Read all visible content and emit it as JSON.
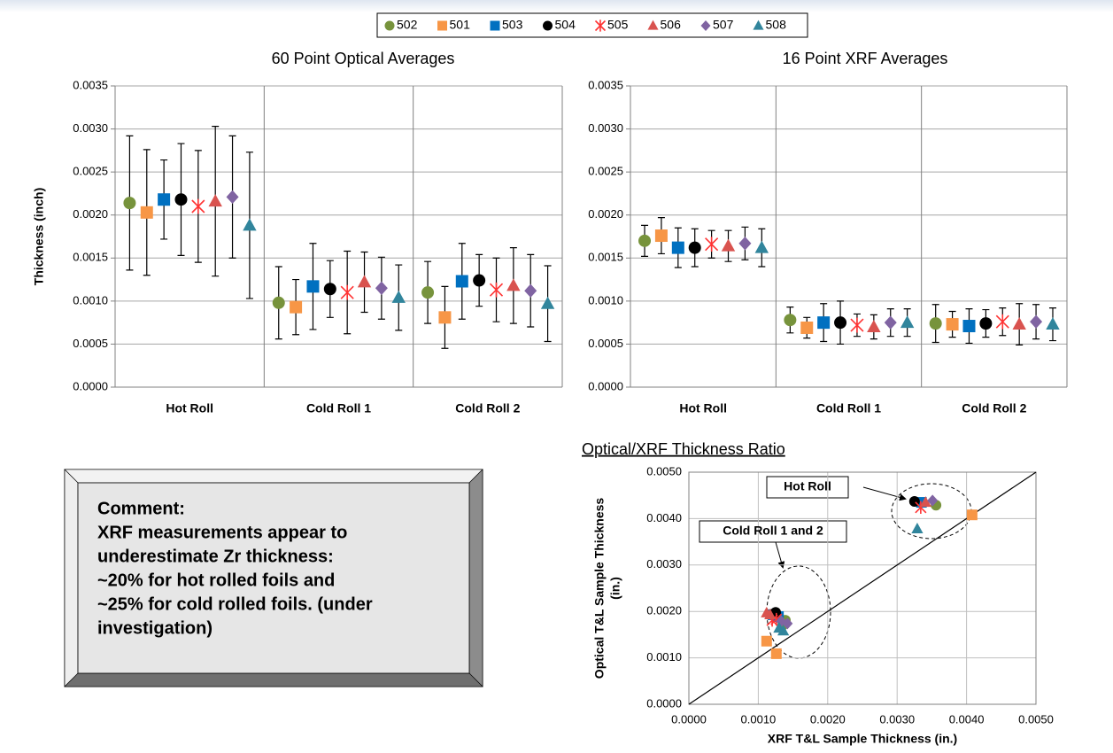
{
  "chart_data": [
    {
      "type": "errorbar",
      "title": "60 Point Optical Averages",
      "y_label": "Thickness (inch)",
      "categories": [
        "Hot Roll",
        "Cold Roll 1",
        "Cold Roll 2"
      ],
      "ylim": [
        0,
        0.0035
      ],
      "yticks": [
        {
          "value": 0,
          "label": "0.0000"
        },
        {
          "value": 0.0005,
          "label": "0.0005"
        },
        {
          "value": 0.001,
          "label": "0.0010"
        },
        {
          "value": 0.0015,
          "label": "0.0015"
        },
        {
          "value": 0.002,
          "label": "0.0020"
        },
        {
          "value": 0.0025,
          "label": "0.0025"
        },
        {
          "value": 0.003,
          "label": "0.0030"
        },
        {
          "value": 0.0035,
          "label": "0.0035"
        }
      ],
      "grid": true,
      "series": [
        {
          "name": "502",
          "color": "#77933c",
          "marker": "circle",
          "values": [
            0.00214,
            0.00098,
            0.0011
          ],
          "errors": [
            0.00078,
            0.00042,
            0.00036
          ]
        },
        {
          "name": "501",
          "color": "#f79646",
          "marker": "square",
          "values": [
            0.00203,
            0.00093,
            0.00081
          ],
          "errors": [
            0.00073,
            0.00032,
            0.00036
          ]
        },
        {
          "name": "503",
          "color": "#0070c0",
          "marker": "square",
          "values": [
            0.00218,
            0.00117,
            0.00123
          ],
          "errors": [
            0.00046,
            0.0005,
            0.00044
          ]
        },
        {
          "name": "504",
          "color": "#000000",
          "marker": "circle",
          "values": [
            0.00218,
            0.00114,
            0.00124
          ],
          "errors": [
            0.00065,
            0.00033,
            0.0003
          ]
        },
        {
          "name": "505",
          "color": "#ff3333",
          "marker": "asterisk",
          "values": [
            0.0021,
            0.0011,
            0.00113
          ],
          "errors": [
            0.00065,
            0.00048,
            0.00037
          ]
        },
        {
          "name": "506",
          "color": "#d9534f",
          "marker": "triangle",
          "values": [
            0.00216,
            0.00122,
            0.00118
          ],
          "errors": [
            0.00087,
            0.00035,
            0.00044
          ]
        },
        {
          "name": "507",
          "color": "#8064a2",
          "marker": "diamond",
          "values": [
            0.00221,
            0.00115,
            0.00112
          ],
          "errors": [
            0.00071,
            0.00036,
            0.00042
          ]
        },
        {
          "name": "508",
          "color": "#31859c",
          "marker": "triangle",
          "values": [
            0.00188,
            0.00104,
            0.00097
          ],
          "errors": [
            0.00085,
            0.00038,
            0.00044
          ]
        }
      ]
    },
    {
      "type": "errorbar",
      "title": "16 Point XRF Averages",
      "categories": [
        "Hot Roll",
        "Cold Roll 1",
        "Cold Roll 2"
      ],
      "ylim": [
        0,
        0.0035
      ],
      "yticks": [
        {
          "value": 0,
          "label": "0.0000"
        },
        {
          "value": 0.0005,
          "label": "0.0005"
        },
        {
          "value": 0.001,
          "label": "0.0010"
        },
        {
          "value": 0.0015,
          "label": "0.0015"
        },
        {
          "value": 0.002,
          "label": "0.0020"
        },
        {
          "value": 0.0025,
          "label": "0.0025"
        },
        {
          "value": 0.003,
          "label": "0.0030"
        },
        {
          "value": 0.0035,
          "label": "0.0035"
        }
      ],
      "grid": true,
      "series": [
        {
          "name": "502",
          "color": "#77933c",
          "marker": "circle",
          "values": [
            0.0017,
            0.00078,
            0.00074
          ],
          "errors": [
            0.00018,
            0.00015,
            0.00022
          ]
        },
        {
          "name": "501",
          "color": "#f79646",
          "marker": "square",
          "values": [
            0.00176,
            0.00069,
            0.00073
          ],
          "errors": [
            0.00021,
            0.00012,
            0.00015
          ]
        },
        {
          "name": "503",
          "color": "#0070c0",
          "marker": "square",
          "values": [
            0.00162,
            0.00075,
            0.00071
          ],
          "errors": [
            0.00023,
            0.00022,
            0.0002
          ]
        },
        {
          "name": "504",
          "color": "#000000",
          "marker": "circle",
          "values": [
            0.00162,
            0.00075,
            0.00074
          ],
          "errors": [
            0.00022,
            0.00025,
            0.00016
          ]
        },
        {
          "name": "505",
          "color": "#ff3333",
          "marker": "asterisk",
          "values": [
            0.00166,
            0.00072,
            0.00076
          ],
          "errors": [
            0.00016,
            0.00013,
            0.00016
          ]
        },
        {
          "name": "506",
          "color": "#d9534f",
          "marker": "triangle",
          "values": [
            0.00164,
            0.0007,
            0.00073
          ],
          "errors": [
            0.00018,
            0.00014,
            0.00024
          ]
        },
        {
          "name": "507",
          "color": "#8064a2",
          "marker": "diamond",
          "values": [
            0.00167,
            0.00075,
            0.00076
          ],
          "errors": [
            0.00019,
            0.00016,
            0.0002
          ]
        },
        {
          "name": "508",
          "color": "#31859c",
          "marker": "triangle",
          "values": [
            0.00162,
            0.00075,
            0.00073
          ],
          "errors": [
            0.00022,
            0.00016,
            0.00019
          ]
        }
      ]
    },
    {
      "type": "scatter",
      "title": "Optical/XRF Thickness Ratio",
      "x_label": "XRF T&L Sample Thickness (in.)",
      "y_label": [
        "Optical T&L Sample Thickness",
        "(in.)"
      ],
      "annotations": [
        "Hot Roll",
        "Cold Roll 1 and 2"
      ],
      "xlim": [
        0,
        0.005
      ],
      "ylim": [
        0,
        0.005
      ],
      "xticks": [
        {
          "value": 0,
          "label": "0.0000"
        },
        {
          "value": 0.001,
          "label": "0.0010"
        },
        {
          "value": 0.002,
          "label": "0.0020"
        },
        {
          "value": 0.003,
          "label": "0.0030"
        },
        {
          "value": 0.004,
          "label": "0.0040"
        },
        {
          "value": 0.005,
          "label": "0.0050"
        }
      ],
      "yticks": [
        {
          "value": 0,
          "label": "0.0000"
        },
        {
          "value": 0.001,
          "label": "0.0010"
        },
        {
          "value": 0.002,
          "label": "0.0020"
        },
        {
          "value": 0.003,
          "label": "0.0030"
        },
        {
          "value": 0.004,
          "label": "0.0040"
        },
        {
          "value": 0.005,
          "label": "0.0050"
        }
      ],
      "grid": true,
      "series": [
        {
          "name": "502",
          "color": "#77933c",
          "marker": "circle",
          "x": [
            0.00356,
            0.00135,
            0.00139
          ],
          "y": [
            0.00429,
            0.0017,
            0.00181
          ]
        },
        {
          "name": "501",
          "color": "#f79646",
          "marker": "square",
          "x": [
            0.00408,
            0.00112,
            0.00126
          ],
          "y": [
            0.00408,
            0.00136,
            0.00109
          ]
        },
        {
          "name": "503",
          "color": "#0070c0",
          "marker": "square",
          "x": [
            0.00335,
            0.00129,
            0.00121
          ],
          "y": [
            0.00435,
            0.00189,
            0.00193
          ]
        },
        {
          "name": "504",
          "color": "#000000",
          "marker": "circle",
          "x": [
            0.00325,
            0.00125,
            0.00122
          ],
          "y": [
            0.00437,
            0.00198,
            0.00195
          ]
        },
        {
          "name": "505",
          "color": "#ff3333",
          "marker": "asterisk",
          "x": [
            0.00334,
            0.00126,
            0.0012
          ],
          "y": [
            0.00424,
            0.00183,
            0.00181
          ]
        },
        {
          "name": "506",
          "color": "#d9534f",
          "marker": "triangle",
          "x": [
            0.00341,
            0.00112,
            0.00117
          ],
          "y": [
            0.00435,
            0.00197,
            0.00193
          ]
        },
        {
          "name": "507",
          "color": "#8064a2",
          "marker": "diamond",
          "x": [
            0.00351,
            0.00142,
            0.00133
          ],
          "y": [
            0.00439,
            0.00174,
            0.00179
          ]
        },
        {
          "name": "508",
          "color": "#31859c",
          "marker": "triangle",
          "x": [
            0.00329,
            0.00136,
            0.0013
          ],
          "y": [
            0.00378,
            0.00158,
            0.00164
          ]
        }
      ]
    }
  ],
  "comment": {
    "lines": [
      "Comment:",
      "XRF measurements appear to",
      "underestimate Zr thickness:",
      "~20% for hot rolled foils and",
      "~25% for cold rolled foils. (under",
      "investigation)"
    ]
  }
}
